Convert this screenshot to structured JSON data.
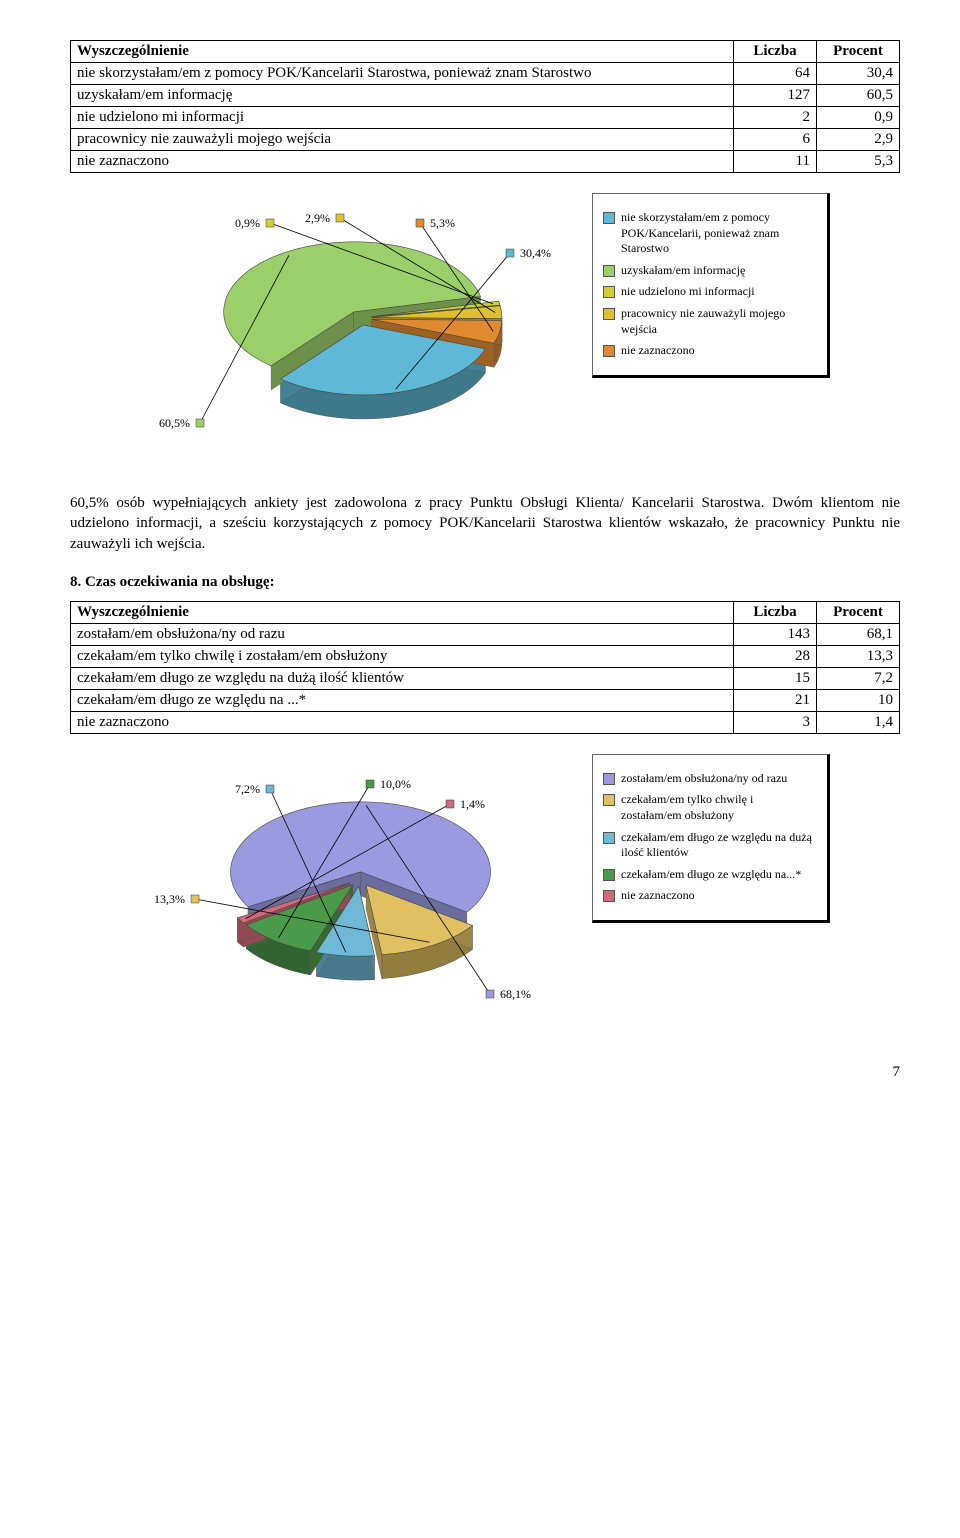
{
  "table1": {
    "headers": [
      "Wyszczególnienie",
      "Liczba",
      "Procent"
    ],
    "rows": [
      [
        "nie skorzystałam/em z pomocy POK/Kancelarii Starostwa, ponieważ znam Starostwo",
        "64",
        "30,4"
      ],
      [
        "uzyskałam/em informację",
        "127",
        "60,5"
      ],
      [
        "nie udzielono mi informacji",
        "2",
        "0,9"
      ],
      [
        "pracownicy nie zauważyli mojego wejścia",
        "6",
        "2,9"
      ],
      [
        "nie zaznaczono",
        "11",
        "5,3"
      ]
    ]
  },
  "chart1": {
    "type": "pie-3d",
    "slices": [
      {
        "label": "30,4%",
        "color": "#5fb9d6",
        "pct": 30.4
      },
      {
        "label": "60,5%",
        "color": "#9bcf6a",
        "pct": 60.5
      },
      {
        "label": "0,9%",
        "color": "#cfcf3a",
        "pct": 0.9
      },
      {
        "label": "2,9%",
        "color": "#e0c030",
        "pct": 2.9
      },
      {
        "label": "5,3%",
        "color": "#e08a30",
        "pct": 5.3
      }
    ],
    "legend": [
      {
        "color": "#5fb9d6",
        "text": "nie skorzystałam/em z pomocy POK/Kancelarii, ponieważ znam Starostwo"
      },
      {
        "color": "#9bcf6a",
        "text": "uzyskałam/em informację"
      },
      {
        "color": "#cfcf3a",
        "text": "nie udzielono mi informacji"
      },
      {
        "color": "#e0c030",
        "text": "pracownicy nie zauważyli mojego wejścia"
      },
      {
        "color": "#e08a30",
        "text": "nie zaznaczono"
      }
    ],
    "label_fontsize": 12,
    "leader_color": "#000000",
    "background": "#ffffff"
  },
  "paragraph1": "60,5% osób wypełniających ankiety jest zadowolona z pracy Punktu Obsługi Klienta/ Kancelarii Starostwa. Dwóm klientom nie udzielono informacji, a sześciu korzystających z pomocy POK/Kancelarii Starostwa klientów wskazało, że pracownicy Punktu nie zauważyli ich wejścia.",
  "section8_title": "8. Czas oczekiwania na obsługę:",
  "table2": {
    "headers": [
      "Wyszczególnienie",
      "Liczba",
      "Procent"
    ],
    "rows": [
      [
        "zostałam/em obsłużona/ny od razu",
        "143",
        "68,1"
      ],
      [
        "czekałam/em tylko chwilę i zostałam/em obsłużony",
        "28",
        "13,3"
      ],
      [
        "czekałam/em długo ze względu na dużą ilość klientów",
        "15",
        "7,2"
      ],
      [
        "czekałam/em długo ze względu na ...*",
        "21",
        "10"
      ],
      [
        "nie zaznaczono",
        "3",
        "1,4"
      ]
    ]
  },
  "chart2": {
    "type": "pie-3d",
    "slices": [
      {
        "label": "68,1%",
        "color": "#9a9ae0",
        "pct": 68.1
      },
      {
        "label": "13,3%",
        "color": "#e0c060",
        "pct": 13.3
      },
      {
        "label": "7,2%",
        "color": "#6fb8d6",
        "pct": 7.2
      },
      {
        "label": "10,0%",
        "color": "#4a9a4a",
        "pct": 10.0
      },
      {
        "label": "1,4%",
        "color": "#d06a7a",
        "pct": 1.4
      }
    ],
    "legend": [
      {
        "color": "#9a9ae0",
        "text": "zostałam/em obsłużona/ny od razu"
      },
      {
        "color": "#e0c060",
        "text": "czekałam/em tylko chwilę i zostałam/em obsłużony"
      },
      {
        "color": "#6fb8d6",
        "text": "czekałam/em długo ze względu na dużą ilość klientów"
      },
      {
        "color": "#4a9a4a",
        "text": "czekałam/em długo ze względu na...*"
      },
      {
        "color": "#d06a7a",
        "text": "nie zaznaczono"
      }
    ],
    "label_fontsize": 12,
    "leader_color": "#000000",
    "background": "#ffffff"
  },
  "page_number": "7"
}
